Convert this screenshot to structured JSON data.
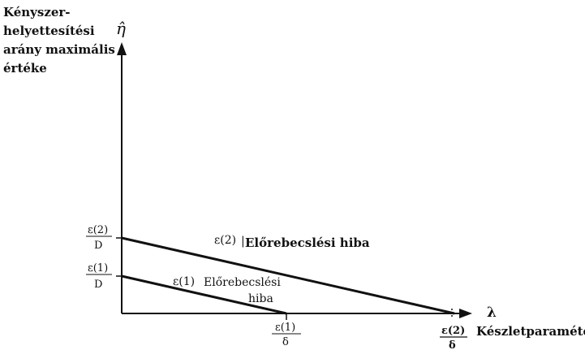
{
  "axes": {
    "y_title_lines": [
      "Kényszer-",
      "helyettesítési",
      "arány maximális",
      "értéke"
    ],
    "y_symbol": "η̂",
    "x_symbol": "λ",
    "x_title": "Készletparaméter"
  },
  "ticks": {
    "y2": {
      "num": "ε(2)",
      "den": "D"
    },
    "y1": {
      "num": "ε(1)",
      "den": "D"
    },
    "x1": {
      "num": "ε(1)",
      "den": "δ"
    },
    "x2": {
      "num": "ε(2)",
      "den": "δ"
    }
  },
  "lines": {
    "line2": {
      "symbol": "ε(2)",
      "label": "Előrebecslési hiba"
    },
    "line1": {
      "symbol": "ε(1)",
      "label_line1": "Előrebecslési",
      "label_line2": "hiba"
    }
  },
  "colors": {
    "ink": "#111111",
    "background": "#ffffff"
  }
}
